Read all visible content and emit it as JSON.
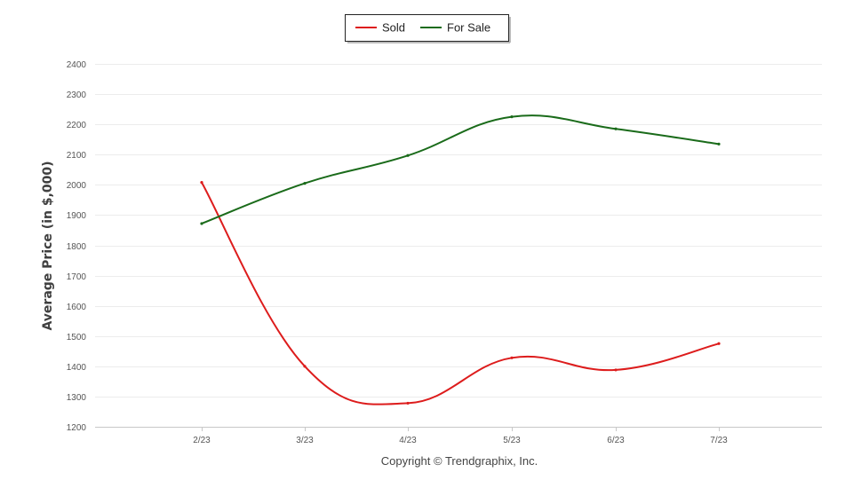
{
  "chart_data": {
    "type": "line",
    "categories": [
      "2/23",
      "3/23",
      "4/23",
      "5/23",
      "6/23",
      "7/23"
    ],
    "series": [
      {
        "name": "Sold",
        "color": "#dd1c1c",
        "values": [
          2008,
          1400,
          1278,
          1428,
          1388,
          1475
        ]
      },
      {
        "name": "For Sale",
        "color": "#1a6b1a",
        "values": [
          1872,
          2005,
          2097,
          2225,
          2185,
          2135
        ]
      }
    ],
    "title": "",
    "xlabel": "",
    "ylabel": "Average Price (in $,000)",
    "ylim": [
      1200,
      2400
    ],
    "yticks": [
      1200,
      1300,
      1400,
      1500,
      1600,
      1700,
      1800,
      1900,
      2000,
      2100,
      2200,
      2300,
      2400
    ],
    "grid": true,
    "legend_placement": "top-center",
    "credit": "Copyright © Trendgraphix, Inc."
  }
}
